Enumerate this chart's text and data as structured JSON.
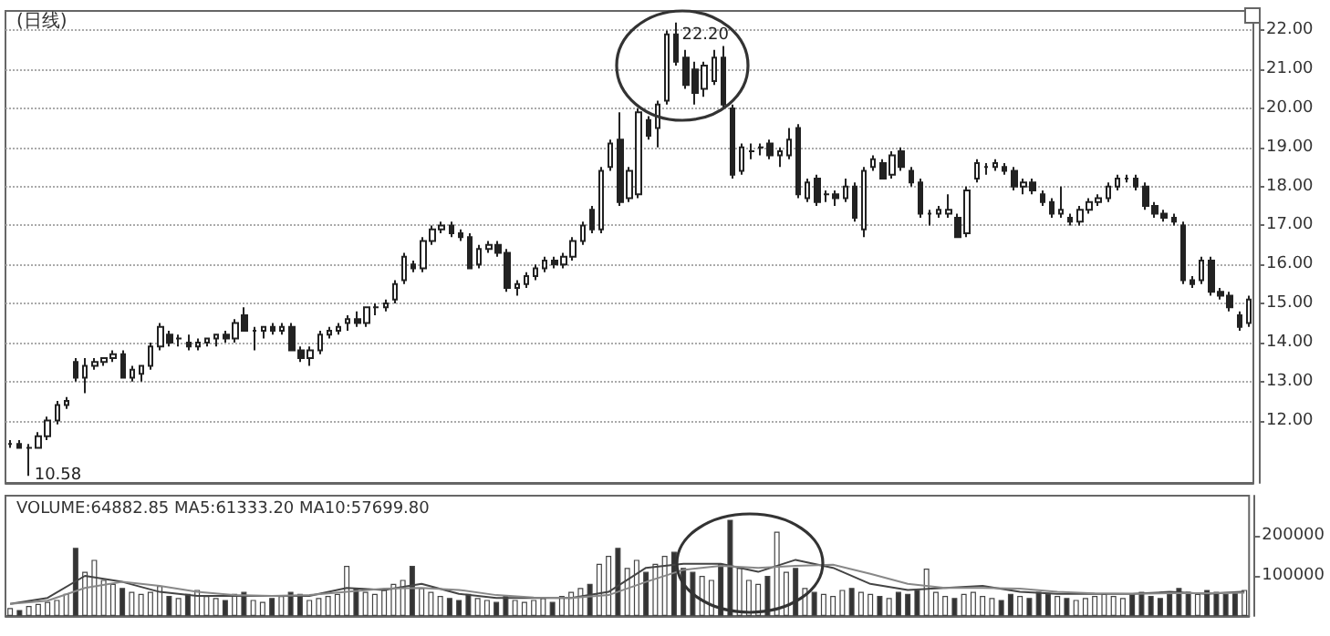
{
  "chart_data": [
    {
      "type": "candlestick",
      "title": "(日线)",
      "categories": [
        null,
        null,
        null,
        null,
        null,
        null,
        null,
        null,
        null,
        null,
        null,
        null,
        null,
        null,
        null,
        null,
        null,
        null,
        null,
        null,
        null,
        null,
        null,
        null,
        null,
        null,
        null,
        null,
        null,
        null,
        null,
        null,
        null,
        null,
        null,
        null,
        null,
        null,
        null,
        null,
        null,
        null,
        null,
        null,
        null,
        null,
        null,
        null,
        null,
        null,
        null,
        null,
        null,
        null,
        null,
        null,
        null,
        null,
        null,
        null,
        null,
        null,
        null,
        null,
        null,
        null,
        null,
        null,
        null,
        null,
        null,
        null,
        null,
        null,
        null,
        null,
        null,
        null,
        null,
        null,
        null,
        null,
        null,
        null,
        null,
        null,
        null,
        null,
        null,
        null,
        null,
        null,
        null,
        null,
        null,
        null,
        null,
        null,
        null,
        null,
        null,
        null,
        null,
        null,
        null,
        null,
        null,
        null,
        null,
        null,
        null,
        null,
        null,
        null,
        null,
        null,
        null,
        null,
        null,
        null,
        null,
        null,
        null,
        null,
        null,
        null,
        null,
        null,
        null,
        null,
        null,
        null,
        null
      ],
      "ohlc": [
        [
          11.4,
          11.5,
          11.3,
          11.4
        ],
        [
          11.4,
          11.5,
          11.3,
          11.3
        ],
        [
          11.3,
          11.4,
          10.58,
          11.3
        ],
        [
          11.3,
          11.7,
          11.3,
          11.6
        ],
        [
          11.6,
          12.1,
          11.5,
          12.0
        ],
        [
          12.0,
          12.5,
          11.9,
          12.4
        ],
        [
          12.4,
          12.6,
          12.3,
          12.5
        ],
        [
          13.5,
          13.6,
          13.0,
          13.1
        ],
        [
          13.1,
          13.6,
          12.7,
          13.4
        ],
        [
          13.4,
          13.6,
          13.3,
          13.5
        ],
        [
          13.5,
          13.6,
          13.4,
          13.6
        ],
        [
          13.6,
          13.8,
          13.5,
          13.7
        ],
        [
          13.7,
          13.8,
          13.1,
          13.1
        ],
        [
          13.1,
          13.4,
          13.0,
          13.3
        ],
        [
          13.2,
          13.4,
          13.0,
          13.4
        ],
        [
          13.4,
          14.0,
          13.3,
          13.9
        ],
        [
          13.9,
          14.5,
          13.8,
          14.4
        ],
        [
          14.2,
          14.3,
          13.9,
          14.0
        ],
        [
          14.1,
          14.2,
          13.9,
          14.1
        ],
        [
          14.0,
          14.2,
          13.8,
          13.9
        ],
        [
          13.9,
          14.1,
          13.8,
          14.0
        ],
        [
          14.0,
          14.1,
          13.9,
          14.1
        ],
        [
          14.1,
          14.2,
          13.9,
          14.2
        ],
        [
          14.2,
          14.3,
          14.0,
          14.1
        ],
        [
          14.1,
          14.6,
          14.0,
          14.5
        ],
        [
          14.7,
          14.9,
          14.3,
          14.3
        ],
        [
          14.3,
          14.4,
          13.8,
          14.3
        ],
        [
          14.3,
          14.4,
          14.1,
          14.4
        ],
        [
          14.4,
          14.5,
          14.2,
          14.3
        ],
        [
          14.3,
          14.5,
          14.2,
          14.4
        ],
        [
          14.4,
          14.5,
          13.8,
          13.8
        ],
        [
          13.8,
          13.9,
          13.5,
          13.6
        ],
        [
          13.6,
          13.9,
          13.4,
          13.8
        ],
        [
          13.8,
          14.3,
          13.7,
          14.2
        ],
        [
          14.2,
          14.4,
          14.1,
          14.3
        ],
        [
          14.3,
          14.5,
          14.2,
          14.4
        ],
        [
          14.5,
          14.7,
          14.3,
          14.6
        ],
        [
          14.6,
          14.8,
          14.4,
          14.5
        ],
        [
          14.5,
          14.9,
          14.4,
          14.9
        ],
        [
          14.9,
          15.0,
          14.7,
          14.9
        ],
        [
          14.9,
          15.1,
          14.8,
          15.0
        ],
        [
          15.1,
          15.6,
          15.0,
          15.5
        ],
        [
          15.6,
          16.3,
          15.5,
          16.2
        ],
        [
          16.0,
          16.1,
          15.8,
          15.9
        ],
        [
          15.9,
          16.7,
          15.8,
          16.6
        ],
        [
          16.6,
          17.0,
          16.5,
          16.9
        ],
        [
          16.9,
          17.1,
          16.8,
          17.0
        ],
        [
          17.0,
          17.1,
          16.7,
          16.8
        ],
        [
          16.8,
          16.9,
          16.6,
          16.7
        ],
        [
          16.7,
          16.8,
          15.9,
          15.9
        ],
        [
          16.0,
          16.5,
          15.9,
          16.4
        ],
        [
          16.4,
          16.6,
          16.3,
          16.5
        ],
        [
          16.5,
          16.6,
          16.2,
          16.3
        ],
        [
          16.3,
          16.4,
          15.3,
          15.4
        ],
        [
          15.4,
          15.6,
          15.2,
          15.5
        ],
        [
          15.5,
          15.8,
          15.4,
          15.7
        ],
        [
          15.7,
          16.0,
          15.6,
          15.9
        ],
        [
          15.9,
          16.2,
          15.8,
          16.1
        ],
        [
          16.1,
          16.2,
          15.9,
          16.0
        ],
        [
          16.0,
          16.3,
          15.9,
          16.2
        ],
        [
          16.2,
          16.7,
          16.1,
          16.6
        ],
        [
          16.6,
          17.1,
          16.5,
          17.0
        ],
        [
          17.4,
          17.5,
          16.8,
          16.9
        ],
        [
          16.9,
          18.5,
          16.8,
          18.4
        ],
        [
          18.5,
          19.2,
          18.4,
          19.1
        ],
        [
          19.2,
          19.9,
          17.5,
          17.6
        ],
        [
          17.7,
          18.5,
          17.6,
          18.4
        ],
        [
          17.8,
          20.0,
          17.7,
          19.9
        ],
        [
          19.7,
          19.8,
          19.2,
          19.3
        ],
        [
          19.5,
          20.2,
          19.0,
          20.1
        ],
        [
          20.2,
          22.0,
          20.1,
          21.9
        ],
        [
          21.9,
          22.2,
          21.1,
          21.2
        ],
        [
          21.3,
          21.5,
          20.5,
          20.6
        ],
        [
          21.0,
          21.2,
          20.1,
          20.4
        ],
        [
          20.5,
          21.2,
          20.3,
          21.1
        ],
        [
          20.7,
          21.5,
          20.6,
          21.3
        ],
        [
          21.3,
          21.6,
          20.0,
          20.1
        ],
        [
          20.0,
          20.1,
          18.2,
          18.3
        ],
        [
          18.4,
          19.1,
          18.3,
          19.0
        ],
        [
          18.9,
          19.1,
          18.7,
          18.9
        ],
        [
          19.0,
          19.1,
          18.8,
          19.0
        ],
        [
          19.1,
          19.2,
          18.7,
          18.8
        ],
        [
          18.8,
          19.0,
          18.5,
          18.9
        ],
        [
          18.8,
          19.5,
          18.7,
          19.2
        ],
        [
          19.5,
          19.6,
          17.7,
          17.8
        ],
        [
          17.7,
          18.2,
          17.6,
          18.1
        ],
        [
          18.2,
          18.3,
          17.5,
          17.6
        ],
        [
          17.8,
          17.9,
          17.6,
          17.8
        ],
        [
          17.8,
          17.9,
          17.5,
          17.7
        ],
        [
          17.7,
          18.2,
          17.6,
          18.0
        ],
        [
          18.0,
          18.1,
          17.1,
          17.2
        ],
        [
          16.9,
          18.5,
          16.7,
          18.4
        ],
        [
          18.5,
          18.8,
          18.4,
          18.7
        ],
        [
          18.6,
          18.7,
          18.2,
          18.2
        ],
        [
          18.3,
          18.9,
          18.2,
          18.8
        ],
        [
          18.9,
          19.0,
          18.4,
          18.5
        ],
        [
          18.4,
          18.5,
          18.0,
          18.1
        ],
        [
          18.1,
          18.2,
          17.2,
          17.3
        ],
        [
          17.3,
          17.4,
          17.0,
          17.3
        ],
        [
          17.3,
          17.5,
          17.2,
          17.4
        ],
        [
          17.3,
          17.8,
          17.2,
          17.4
        ],
        [
          17.2,
          17.3,
          16.7,
          16.7
        ],
        [
          16.8,
          18.0,
          16.7,
          17.9
        ],
        [
          18.2,
          18.7,
          18.1,
          18.6
        ],
        [
          18.5,
          18.6,
          18.3,
          18.5
        ],
        [
          18.5,
          18.7,
          18.4,
          18.6
        ],
        [
          18.5,
          18.6,
          18.3,
          18.4
        ],
        [
          18.4,
          18.5,
          17.9,
          18.0
        ],
        [
          18.0,
          18.2,
          17.8,
          18.1
        ],
        [
          18.1,
          18.2,
          17.8,
          17.9
        ],
        [
          17.8,
          17.9,
          17.5,
          17.6
        ],
        [
          17.6,
          17.7,
          17.2,
          17.3
        ],
        [
          17.3,
          18.0,
          17.2,
          17.4
        ],
        [
          17.2,
          17.3,
          17.0,
          17.1
        ],
        [
          17.1,
          17.5,
          17.0,
          17.4
        ],
        [
          17.4,
          17.7,
          17.3,
          17.6
        ],
        [
          17.6,
          17.8,
          17.5,
          17.7
        ],
        [
          17.7,
          18.1,
          17.6,
          18.0
        ],
        [
          18.0,
          18.3,
          17.9,
          18.2
        ],
        [
          18.2,
          18.3,
          18.1,
          18.2
        ],
        [
          18.2,
          18.3,
          17.9,
          18.0
        ],
        [
          18.0,
          18.1,
          17.4,
          17.5
        ],
        [
          17.5,
          17.6,
          17.2,
          17.3
        ],
        [
          17.3,
          17.4,
          17.1,
          17.2
        ],
        [
          17.2,
          17.3,
          17.0,
          17.1
        ],
        [
          17.0,
          17.1,
          15.5,
          15.6
        ],
        [
          15.6,
          15.7,
          15.4,
          15.5
        ],
        [
          15.6,
          16.2,
          15.5,
          16.1
        ],
        [
          16.1,
          16.2,
          15.2,
          15.3
        ],
        [
          15.3,
          15.4,
          15.1,
          15.2
        ],
        [
          15.2,
          15.3,
          14.8,
          14.9
        ],
        [
          14.7,
          14.8,
          14.3,
          14.4
        ],
        [
          14.5,
          15.2,
          14.4,
          15.1
        ]
      ],
      "ylim": [
        10.4,
        22.5
      ],
      "yticks": [
        {
          "value": 12,
          "label": "12.00"
        },
        {
          "value": 13,
          "label": "13.00"
        },
        {
          "value": 14,
          "label": "14.00"
        },
        {
          "value": 15,
          "label": "15.00"
        },
        {
          "value": 16,
          "label": "16.00"
        },
        {
          "value": 17,
          "label": "17.00"
        },
        {
          "value": 18,
          "label": "18.00"
        },
        {
          "value": 19,
          "label": "19.00"
        },
        {
          "value": 20,
          "label": "20.00"
        },
        {
          "value": 21,
          "label": "21.00"
        },
        {
          "value": 22,
          "label": "22.00"
        }
      ],
      "grid": "y",
      "tick_labels": "y",
      "annotations": [
        "22.20",
        "10.58"
      ]
    },
    {
      "type": "bar",
      "title": "VOLUME:64882.85 MA5:61333.20 MA10:57699.80",
      "categories": [
        null,
        null,
        null,
        null,
        null,
        null,
        null,
        null,
        null,
        null,
        null,
        null,
        null,
        null,
        null,
        null,
        null,
        null,
        null,
        null,
        null,
        null,
        null,
        null,
        null,
        null,
        null,
        null,
        null,
        null,
        null,
        null,
        null,
        null,
        null,
        null,
        null,
        null,
        null,
        null,
        null,
        null,
        null,
        null,
        null,
        null,
        null,
        null,
        null,
        null,
        null,
        null,
        null,
        null,
        null,
        null,
        null,
        null,
        null,
        null,
        null,
        null,
        null,
        null,
        null,
        null,
        null,
        null,
        null,
        null,
        null,
        null,
        null,
        null,
        null,
        null,
        null,
        null,
        null,
        null,
        null,
        null,
        null,
        null,
        null,
        null,
        null,
        null,
        null,
        null,
        null,
        null,
        null,
        null,
        null,
        null,
        null,
        null,
        null,
        null,
        null,
        null,
        null,
        null,
        null,
        null,
        null,
        null,
        null,
        null,
        null,
        null,
        null,
        null,
        null,
        null,
        null,
        null,
        null,
        null,
        null,
        null,
        null,
        null,
        null,
        null,
        null,
        null,
        null,
        null,
        null,
        null,
        null
      ],
      "series": [
        {
          "type": "bar",
          "values": [
            20000,
            15000,
            25000,
            30000,
            35000,
            40000,
            55000,
            170000,
            110000,
            140000,
            90000,
            80000,
            70000,
            60000,
            55000,
            60000,
            75000,
            50000,
            45000,
            55000,
            65000,
            50000,
            45000,
            40000,
            55000,
            60000,
            40000,
            35000,
            45000,
            50000,
            60000,
            55000,
            40000,
            45000,
            50000,
            55000,
            125000,
            70000,
            60000,
            55000,
            65000,
            80000,
            90000,
            125000,
            70000,
            60000,
            50000,
            45000,
            40000,
            55000,
            45000,
            40000,
            35000,
            50000,
            40000,
            35000,
            40000,
            45000,
            35000,
            50000,
            60000,
            70000,
            80000,
            130000,
            150000,
            170000,
            120000,
            140000,
            110000,
            130000,
            150000,
            160000,
            120000,
            110000,
            100000,
            90000,
            130000,
            240000,
            120000,
            90000,
            80000,
            100000,
            210000,
            110000,
            120000,
            70000,
            60000,
            55000,
            50000,
            65000,
            70000,
            60000,
            55000,
            50000,
            45000,
            60000,
            55000,
            65000,
            118000,
            60000,
            50000,
            45000,
            55000,
            60000,
            50000,
            45000,
            40000,
            55000,
            50000,
            45000,
            60000,
            55000,
            50000,
            45000,
            40000,
            45000,
            50000,
            55000,
            50000,
            45000,
            55000,
            60000,
            50000,
            45000,
            55000,
            70000,
            60000,
            55000,
            65000,
            60000,
            55000,
            60000,
            65000
          ],
          "colors": [
            "#ffffff",
            "#333333",
            "#ffffff",
            "#ffffff",
            "#ffffff",
            "#ffffff",
            "#ffffff",
            "#333333",
            "#ffffff",
            "#ffffff",
            "#ffffff",
            "#ffffff",
            "#333333",
            "#ffffff",
            "#ffffff",
            "#ffffff",
            "#ffffff",
            "#333333",
            "#ffffff",
            "#333333",
            "#ffffff",
            "#ffffff",
            "#ffffff",
            "#333333",
            "#ffffff",
            "#333333",
            "#ffffff",
            "#ffffff",
            "#333333",
            "#ffffff",
            "#333333",
            "#333333",
            "#ffffff",
            "#ffffff",
            "#ffffff",
            "#ffffff",
            "#ffffff",
            "#333333",
            "#ffffff",
            "#ffffff",
            "#ffffff",
            "#ffffff",
            "#ffffff",
            "#333333",
            "#ffffff",
            "#ffffff",
            "#ffffff",
            "#333333",
            "#333333",
            "#333333",
            "#ffffff",
            "#ffffff",
            "#333333",
            "#333333",
            "#ffffff",
            "#ffffff",
            "#ffffff",
            "#ffffff",
            "#333333",
            "#ffffff",
            "#ffffff",
            "#ffffff",
            "#333333",
            "#ffffff",
            "#ffffff",
            "#333333",
            "#ffffff",
            "#ffffff",
            "#333333",
            "#ffffff",
            "#ffffff",
            "#333333",
            "#333333",
            "#333333",
            "#ffffff",
            "#ffffff",
            "#333333",
            "#333333",
            "#ffffff",
            "#ffffff",
            "#ffffff",
            "#333333",
            "#ffffff",
            "#ffffff",
            "#333333",
            "#ffffff",
            "#333333",
            "#ffffff",
            "#ffffff",
            "#ffffff",
            "#333333",
            "#ffffff",
            "#ffffff",
            "#333333",
            "#ffffff",
            "#333333",
            "#333333",
            "#333333",
            "#ffffff",
            "#ffffff",
            "#ffffff",
            "#333333",
            "#ffffff",
            "#ffffff",
            "#ffffff",
            "#ffffff",
            "#333333",
            "#333333",
            "#ffffff",
            "#333333",
            "#333333",
            "#333333",
            "#ffffff",
            "#333333",
            "#ffffff",
            "#ffffff",
            "#ffffff",
            "#ffffff",
            "#ffffff",
            "#ffffff",
            "#333333",
            "#333333",
            "#333333",
            "#333333",
            "#333333",
            "#333333",
            "#333333",
            "#ffffff",
            "#333333",
            "#333333",
            "#333333",
            "#333333",
            "#ffffff"
          ]
        },
        {
          "type": "line",
          "color": "#444444",
          "values": [
            30000,
            null,
            null,
            null,
            45000,
            null,
            null,
            null,
            100000,
            null,
            null,
            null,
            85000,
            null,
            null,
            null,
            60000,
            null,
            null,
            null,
            50000,
            null,
            null,
            null,
            50000,
            null,
            null,
            null,
            50000,
            null,
            null,
            null,
            50000,
            null,
            null,
            null,
            70000,
            null,
            null,
            null,
            65000,
            null,
            null,
            null,
            80000,
            null,
            null,
            null,
            55000,
            null,
            null,
            null,
            45000,
            null,
            null,
            null,
            45000,
            null,
            null,
            null,
            45000,
            null,
            null,
            null,
            60000,
            null,
            null,
            null,
            120000,
            null,
            null,
            null,
            130000,
            null,
            null,
            null,
            130000,
            null,
            null,
            null,
            110000,
            null,
            null,
            null,
            140000,
            null,
            null,
            null,
            120000,
            null,
            null,
            null,
            80000,
            null,
            null,
            null,
            65000,
            null,
            null,
            null,
            70000,
            null,
            null,
            null,
            75000,
            null,
            null,
            null,
            60000,
            null,
            null,
            null,
            55000,
            null,
            null,
            null,
            55000,
            null,
            null,
            null,
            55000,
            null,
            null,
            null,
            60000,
            null,
            null,
            null,
            55000,
            null,
            null,
            null,
            61000
          ]
        },
        {
          "type": "line",
          "color": "#888888",
          "values": [
            30000,
            null,
            null,
            null,
            38000,
            null,
            null,
            null,
            70000,
            null,
            null,
            null,
            85000,
            null,
            null,
            null,
            75000,
            null,
            null,
            null,
            60000,
            null,
            null,
            null,
            52000,
            null,
            null,
            null,
            50000,
            null,
            null,
            null,
            52000,
            null,
            null,
            null,
            60000,
            null,
            null,
            null,
            68000,
            null,
            null,
            null,
            70000,
            null,
            null,
            null,
            65000,
            null,
            null,
            null,
            52000,
            null,
            null,
            null,
            46000,
            null,
            null,
            null,
            45000,
            null,
            null,
            null,
            52000,
            null,
            null,
            null,
            85000,
            null,
            null,
            null,
            115000,
            null,
            null,
            null,
            125000,
            null,
            null,
            null,
            120000,
            null,
            null,
            null,
            125000,
            null,
            null,
            null,
            128000,
            null,
            null,
            null,
            105000,
            null,
            null,
            null,
            80000,
            null,
            null,
            null,
            70000,
            null,
            null,
            null,
            70000,
            null,
            null,
            null,
            68000,
            null,
            null,
            null,
            60000,
            null,
            null,
            null,
            56000,
            null,
            null,
            null,
            55000,
            null,
            null,
            null,
            57000,
            null,
            null,
            null,
            57000,
            null,
            null,
            null,
            58000
          ]
        }
      ],
      "ylim": [
        0,
        300000
      ],
      "yticks": [
        100000,
        200000
      ],
      "tick_labels": "y"
    }
  ]
}
